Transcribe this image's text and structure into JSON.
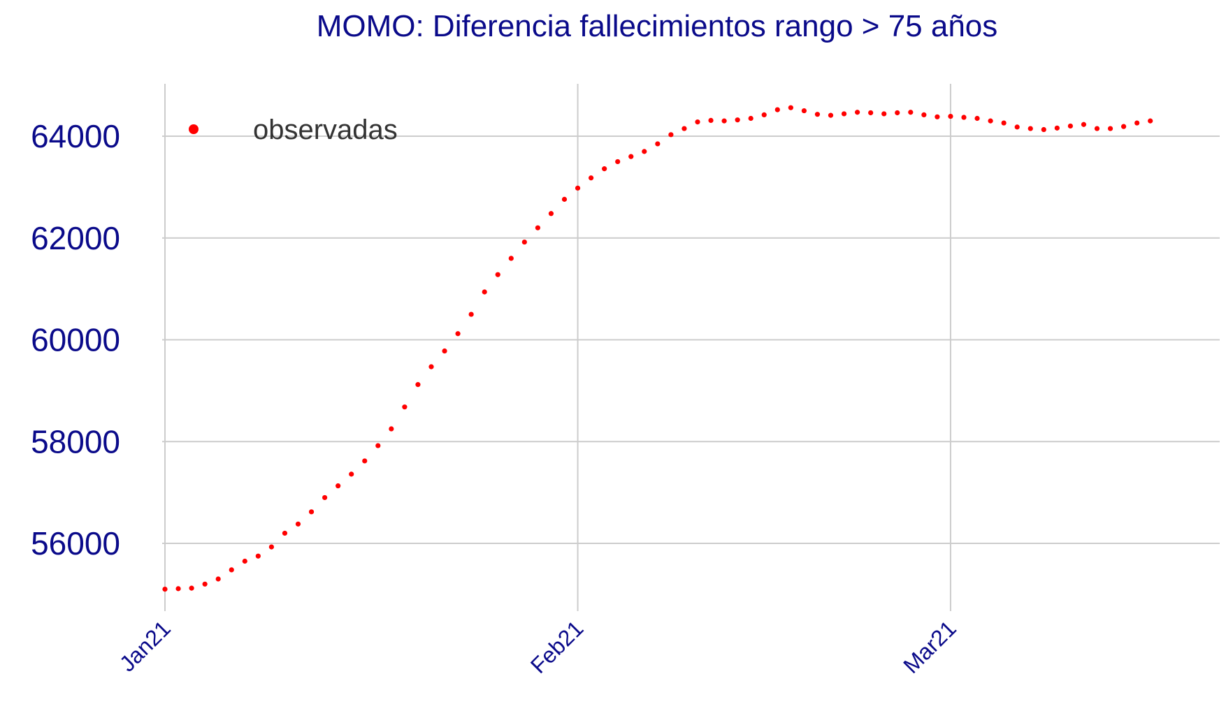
{
  "chart_data": {
    "type": "scatter",
    "title": "MOMO: Diferencia fallecimientos rango > 75 años",
    "xlabel": "",
    "ylabel": "",
    "x_start": "2021-01-01",
    "x_ticks": [
      {
        "label": "Jan21",
        "date": "2021-01-01"
      },
      {
        "label": "Feb21",
        "date": "2021-02-01"
      },
      {
        "label": "Mar21",
        "date": "2021-03-01"
      }
    ],
    "y_ticks": [
      56000,
      58000,
      60000,
      62000,
      64000
    ],
    "ylim": [
      54700,
      65000
    ],
    "grid": true,
    "legend_position": "top-left",
    "series": [
      {
        "name": "observadas",
        "color": "#ff0000",
        "values": [
          55100,
          55110,
          55120,
          55200,
          55300,
          55480,
          55650,
          55750,
          55930,
          56200,
          56380,
          56620,
          56900,
          57130,
          57360,
          57620,
          57920,
          58250,
          58680,
          59120,
          59470,
          59780,
          60120,
          60500,
          60940,
          61280,
          61600,
          61920,
          62200,
          62480,
          62760,
          62980,
          63180,
          63360,
          63500,
          63600,
          63700,
          63850,
          64030,
          64150,
          64280,
          64310,
          64300,
          64320,
          64350,
          64420,
          64520,
          64560,
          64500,
          64430,
          64410,
          64440,
          64470,
          64460,
          64440,
          64460,
          64470,
          64420,
          64380,
          64390,
          64370,
          64350,
          64300,
          64260,
          64180,
          64150,
          64130,
          64160,
          64200,
          64230,
          64150,
          64150,
          64190,
          64260,
          64300
        ]
      }
    ]
  }
}
